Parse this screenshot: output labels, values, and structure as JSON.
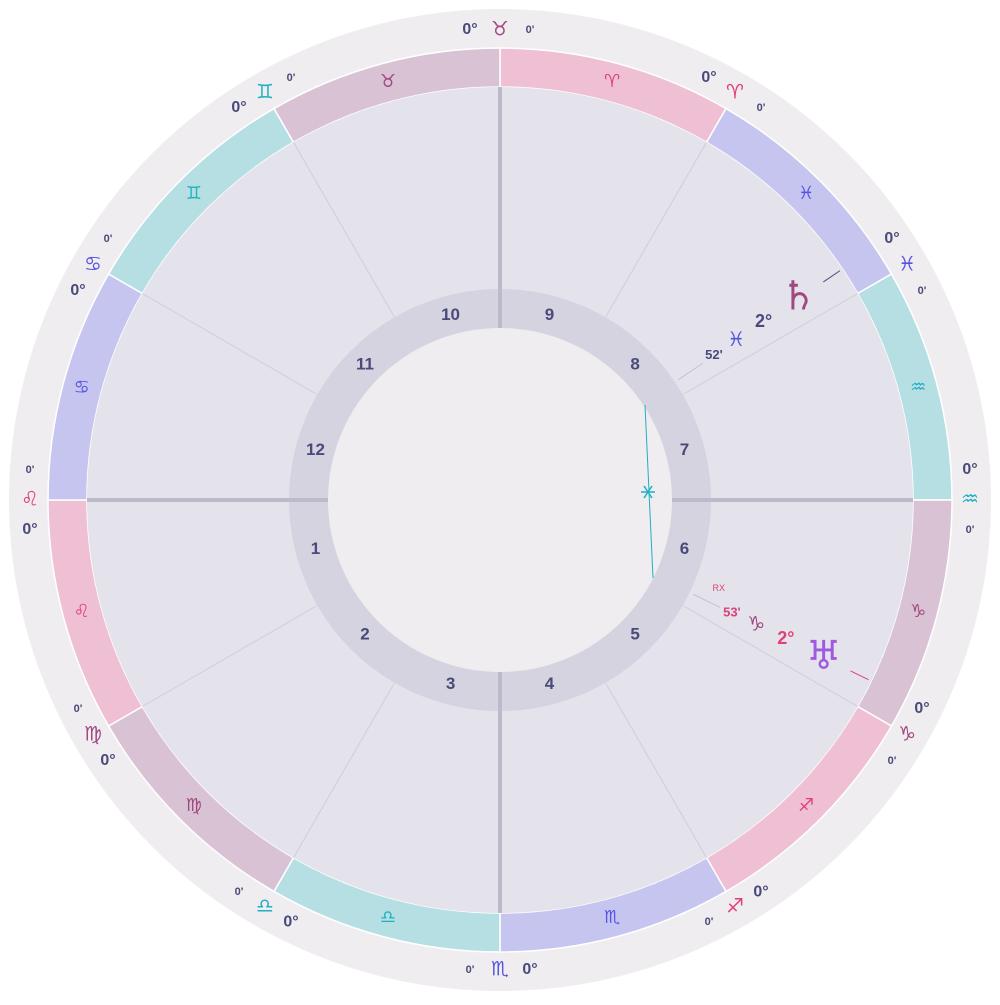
{
  "zodiac_ring": [
    "♈",
    "♓",
    "♒",
    "♑",
    "♐",
    "♏",
    "♎",
    "♍",
    "♌",
    "♋",
    "♊",
    "♉"
  ],
  "cusps": [
    {
      "degree": "0°",
      "sign": "♉",
      "minutes": "0'"
    },
    {
      "degree": "0°",
      "sign": "♈",
      "minutes": "0'"
    },
    {
      "degree": "0°",
      "sign": "♓",
      "minutes": "0'"
    },
    {
      "degree": "0°",
      "sign": "♒",
      "minutes": "0'"
    },
    {
      "degree": "0°",
      "sign": "♑",
      "minutes": "0'"
    },
    {
      "degree": "0°",
      "sign": "♐",
      "minutes": "0'"
    },
    {
      "degree": "0°",
      "sign": "♏",
      "minutes": "0'"
    },
    {
      "degree": "0°",
      "sign": "♎",
      "minutes": "0'"
    },
    {
      "degree": "0°",
      "sign": "♍",
      "minutes": "0'"
    },
    {
      "degree": "0°",
      "sign": "♌",
      "minutes": "0'"
    },
    {
      "degree": "0°",
      "sign": "♋",
      "minutes": "0'"
    },
    {
      "degree": "0°",
      "sign": "♊",
      "minutes": "0'"
    }
  ],
  "houses": [
    "1",
    "2",
    "3",
    "4",
    "5",
    "6",
    "7",
    "8",
    "9",
    "10",
    "11",
    "12"
  ],
  "planets": [
    {
      "glyph": "♄",
      "degree": "2°",
      "sign": "♓",
      "minutes": "52'"
    },
    {
      "glyph": "♅",
      "retrograde": "RX",
      "degree": "2°",
      "sign": "♑",
      "minutes": "53'"
    }
  ]
}
